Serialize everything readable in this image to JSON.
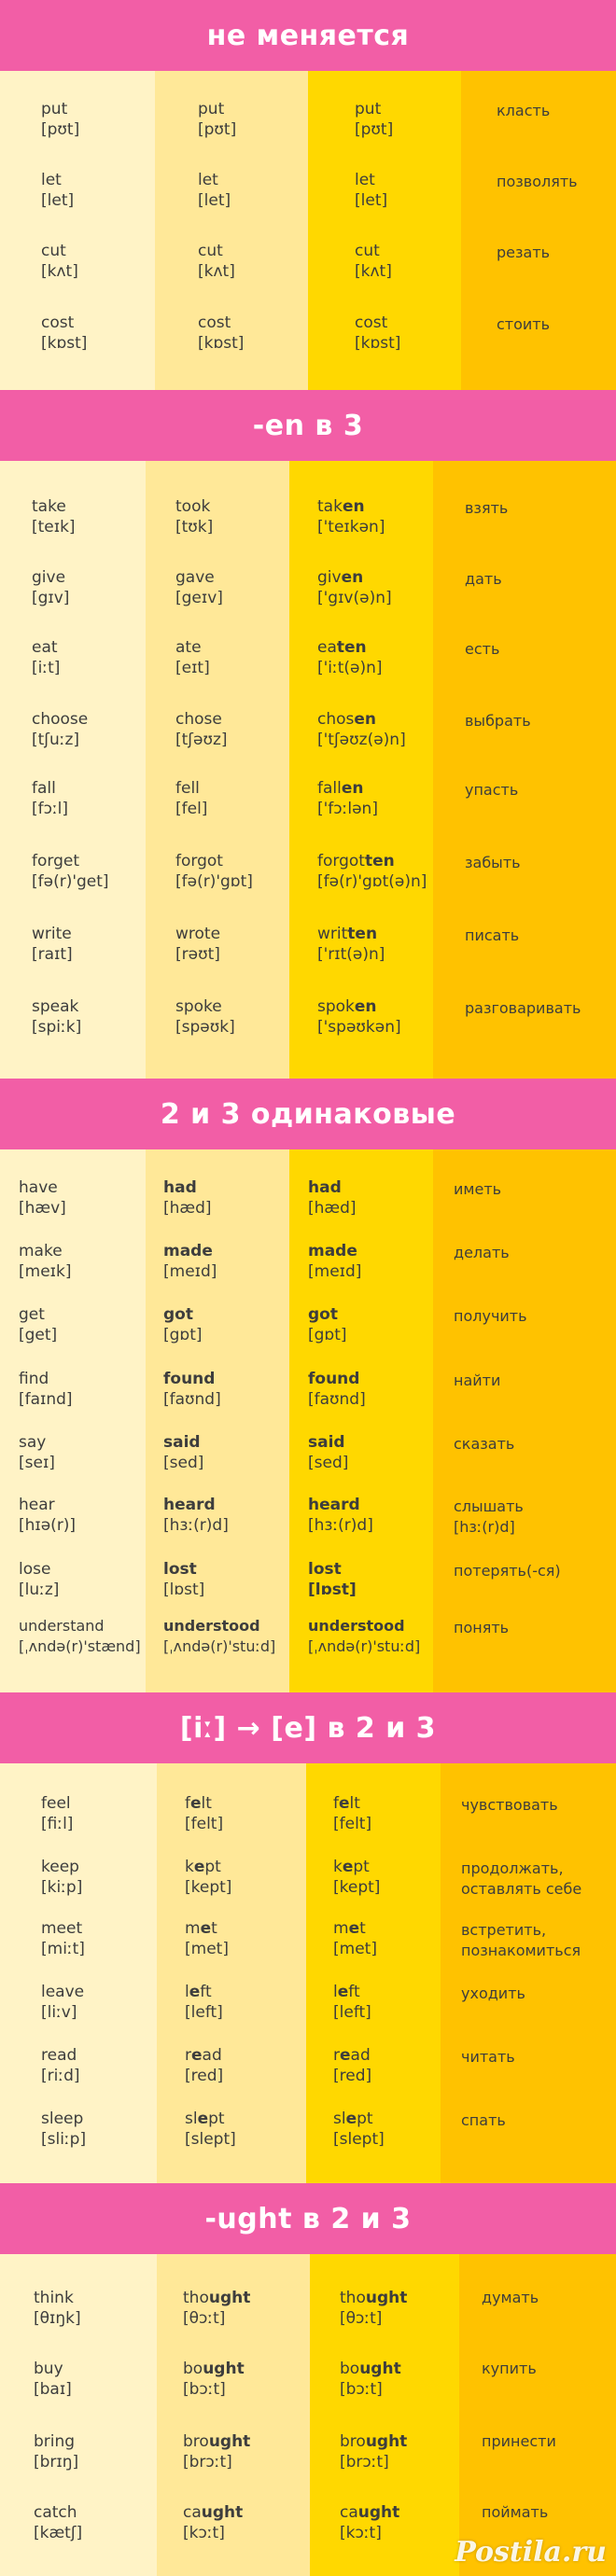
{
  "colors": {
    "header": "#f25ea6",
    "col1": "#fff3c6",
    "col2": "#ffe898",
    "col3": "#ffd800",
    "col4": "#ffc200"
  },
  "sections": [
    {
      "title": "не меняется",
      "rows": [
        {
          "f": [
            "put",
            "[pʊt]"
          ],
          "p": [
            "put",
            "[pʊt]"
          ],
          "pp": [
            "put",
            "[pʊt]"
          ],
          "tr": [
            "класть"
          ]
        },
        {
          "f": [
            "let",
            "[let]"
          ],
          "p": [
            "let",
            "[let]"
          ],
          "pp": [
            "let",
            "[let]"
          ],
          "tr": [
            "позволять"
          ]
        },
        {
          "f": [
            "cut",
            "[kʌt]"
          ],
          "p": [
            "cut",
            "[kʌt]"
          ],
          "pp": [
            "cut",
            "[kʌt]"
          ],
          "tr": [
            "резать"
          ]
        },
        {
          "f": [
            "cost",
            "[kɒst]"
          ],
          "p": [
            "cost",
            "[kɒst]"
          ],
          "pp": [
            "cost",
            "[kɒst]"
          ],
          "tr": [
            "стоить"
          ]
        }
      ]
    },
    {
      "title": "-en в 3",
      "rows": [
        {
          "f": [
            "take",
            "[teɪk]"
          ],
          "p": [
            "took",
            "[tʊk]"
          ],
          "pp": [
            "taken",
            "['teɪkən]"
          ],
          "tr": [
            "взять"
          ]
        },
        {
          "f": [
            "give",
            "[gɪv]"
          ],
          "p": [
            "gave",
            "[geɪv]"
          ],
          "pp": [
            "given",
            "['gɪv(ə)n]"
          ],
          "tr": [
            "дать"
          ]
        },
        {
          "f": [
            "eat",
            "[iːt]"
          ],
          "p": [
            "ate",
            "[eɪt]"
          ],
          "pp": [
            "eaten",
            "['iːt(ə)n]"
          ],
          "tr": [
            "есть"
          ]
        },
        {
          "f": [
            "choose",
            "[tʃuːz]"
          ],
          "p": [
            "chose",
            "[tʃəʊz]"
          ],
          "pp": [
            "chosen",
            "['tʃəʊz(ə)n]"
          ],
          "tr": [
            "выбрать"
          ]
        },
        {
          "f": [
            "fall",
            "[fɔːl]"
          ],
          "p": [
            "fell",
            "[fel]"
          ],
          "pp": [
            "fallen",
            "['fɔːlən]"
          ],
          "tr": [
            "упасть"
          ]
        },
        {
          "f": [
            "forget",
            "[fə(r)'get]"
          ],
          "p": [
            "forgot",
            "[fə(r)'gɒt]"
          ],
          "pp": [
            "forgotten",
            "[fə(r)'gɒt(ə)n]"
          ],
          "tr": [
            "забыть"
          ]
        },
        {
          "f": [
            "write",
            "[raɪt]"
          ],
          "p": [
            "wrote",
            "[rəʊt]"
          ],
          "pp": [
            "written",
            "['rɪt(ə)n]"
          ],
          "tr": [
            "писать"
          ]
        },
        {
          "f": [
            "speak",
            "[spiːk]"
          ],
          "p": [
            "spoke",
            "[spəʊk]"
          ],
          "pp": [
            "spoken",
            "['spəʊkən]"
          ],
          "tr": [
            "разговаривать"
          ]
        }
      ]
    },
    {
      "title": "2 и 3 одинаковые",
      "rows": [
        {
          "f": [
            "have",
            "[hæv]"
          ],
          "p": [
            "had",
            "[hæd]"
          ],
          "pp": [
            "had",
            "[hæd]"
          ],
          "tr": [
            "иметь"
          ]
        },
        {
          "f": [
            "make",
            "[meɪk]"
          ],
          "p": [
            "made",
            "[meɪd]"
          ],
          "pp": [
            "made",
            "[meɪd]"
          ],
          "tr": [
            "делать"
          ]
        },
        {
          "f": [
            "get",
            "[get]"
          ],
          "p": [
            "got",
            "[gɒt]"
          ],
          "pp": [
            "got",
            "[gɒt]"
          ],
          "tr": [
            "получить"
          ]
        },
        {
          "f": [
            "find",
            "[faɪnd]"
          ],
          "p": [
            "found",
            "[faʊnd]"
          ],
          "pp": [
            "found",
            "[faʊnd]"
          ],
          "tr": [
            "найти"
          ]
        },
        {
          "f": [
            "say",
            "[seɪ]"
          ],
          "p": [
            "said",
            "[sed]"
          ],
          "pp": [
            "said",
            "[sed]"
          ],
          "tr": [
            "сказать"
          ]
        },
        {
          "f": [
            "hear",
            "[hɪə(r)]"
          ],
          "p": [
            "heard",
            "[hɜː(r)d]"
          ],
          "pp": [
            "heard",
            "[hɜː(r)d]"
          ],
          "tr": [
            "слышать",
            "[hɜː(r)d]"
          ]
        },
        {
          "f": [
            "lose",
            "[luːz]"
          ],
          "p": [
            "lost",
            "[lɒst]"
          ],
          "pp": [
            "lost",
            "[lɒst]"
          ],
          "tr": [
            "потерять(-ся)"
          ]
        },
        {
          "f": [
            "understand",
            "[ˌʌndə(r)'stænd]"
          ],
          "p": [
            "understood",
            "[ˌʌndə(r)'stuːd]"
          ],
          "pp": [
            "understood",
            "[ˌʌndə(r)'stuːd]"
          ],
          "tr": [
            "понять"
          ]
        }
      ]
    },
    {
      "title": "[iː] → [e] в 2 и 3",
      "rows": [
        {
          "f": [
            "feel",
            "[fiːl]"
          ],
          "p": [
            "felt",
            "[felt]"
          ],
          "pp": [
            "felt",
            "[felt]"
          ],
          "tr": [
            "чувствовать"
          ]
        },
        {
          "f": [
            "keep",
            "[kiːp]"
          ],
          "p": [
            "kept",
            "[kept]"
          ],
          "pp": [
            "kept",
            "[kept]"
          ],
          "tr": [
            "продолжать,",
            "оставлять себе"
          ]
        },
        {
          "f": [
            "meet",
            "[miːt]"
          ],
          "p": [
            "met",
            "[met]"
          ],
          "pp": [
            "met",
            "[met]"
          ],
          "tr": [
            "встретить,",
            "познакомиться"
          ]
        },
        {
          "f": [
            "leave",
            "[liːv]"
          ],
          "p": [
            "left",
            "[left]"
          ],
          "pp": [
            "left",
            "[left]"
          ],
          "tr": [
            "уходить"
          ]
        },
        {
          "f": [
            "read",
            "[riːd]"
          ],
          "p": [
            "read",
            "[red]"
          ],
          "pp": [
            "read",
            "[red]"
          ],
          "tr": [
            "читать"
          ]
        },
        {
          "f": [
            "sleep",
            "[sliːp]"
          ],
          "p": [
            "slept",
            "[slept]"
          ],
          "pp": [
            "slept",
            "[slept]"
          ],
          "tr": [
            "спать"
          ]
        }
      ]
    },
    {
      "title": "-ught в 2 и 3",
      "rows": [
        {
          "f": [
            "think",
            "[θɪŋk]"
          ],
          "p": [
            "thought",
            "[θɔːt]"
          ],
          "pp": [
            "thought",
            "[θɔːt]"
          ],
          "tr": [
            "думать"
          ]
        },
        {
          "f": [
            "buy",
            "[baɪ]"
          ],
          "p": [
            "bought",
            "[bɔːt]"
          ],
          "pp": [
            "bought",
            "[bɔːt]"
          ],
          "tr": [
            "купить"
          ]
        },
        {
          "f": [
            "bring",
            "[brɪŋ]"
          ],
          "p": [
            "brought",
            "[brɔːt]"
          ],
          "pp": [
            "brought",
            "[brɔːt]"
          ],
          "tr": [
            "принести"
          ]
        },
        {
          "f": [
            "catch",
            "[kætʃ]"
          ],
          "p": [
            "caught",
            "[kɔːt]"
          ],
          "pp": [
            "caught",
            "[kɔːt]"
          ],
          "tr": [
            "поймать"
          ]
        }
      ]
    }
  ],
  "watermark": "Postila.ru"
}
